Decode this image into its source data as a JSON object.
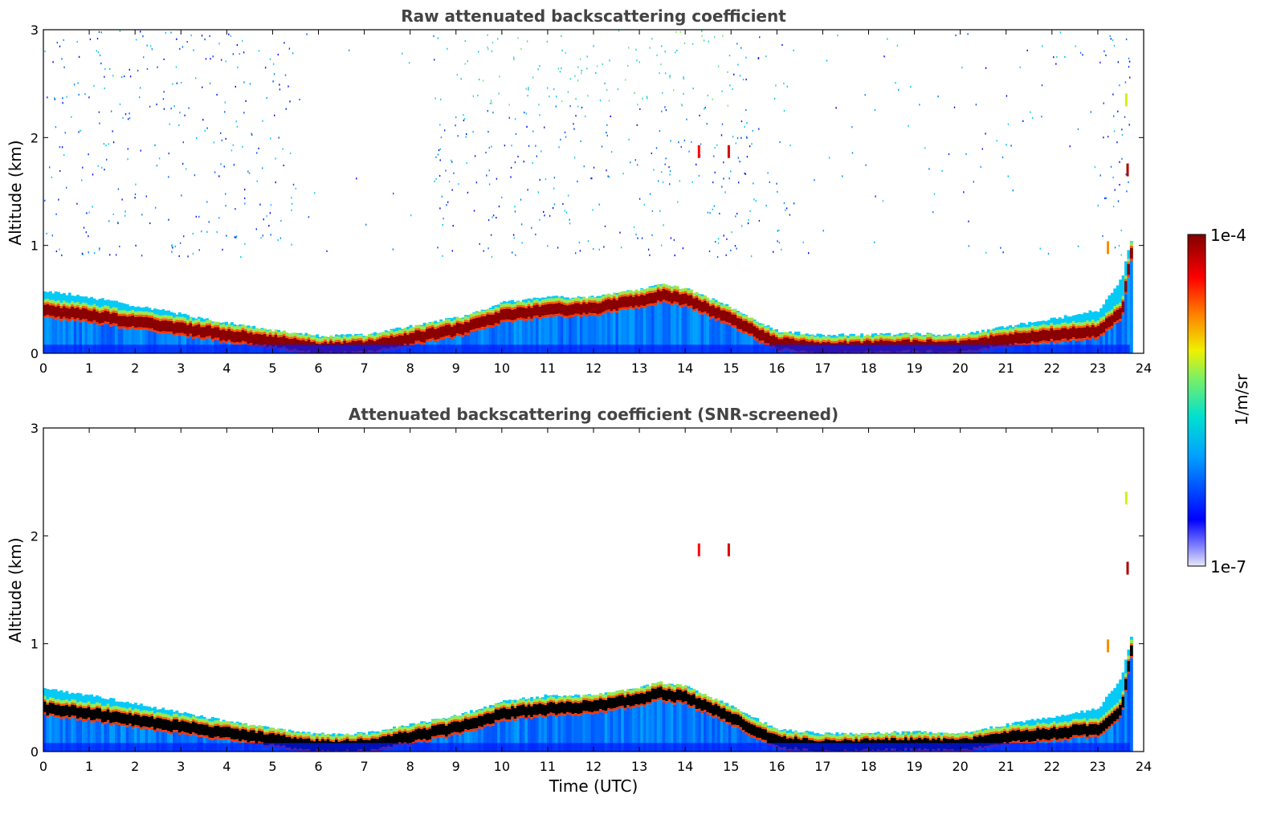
{
  "chart_data": [
    {
      "type": "heatmap",
      "title": "Raw attenuated backscattering coefficient",
      "xlabel": "",
      "ylabel": "Altitude (km)",
      "xlim": [
        0,
        24
      ],
      "ylim": [
        0,
        3
      ],
      "xticks": [
        "0",
        "1",
        "2",
        "3",
        "4",
        "5",
        "6",
        "7",
        "8",
        "9",
        "10",
        "11",
        "12",
        "13",
        "14",
        "15",
        "16",
        "17",
        "18",
        "19",
        "20",
        "21",
        "22",
        "23",
        "24"
      ],
      "yticks": [
        "0",
        "1",
        "2",
        "3"
      ],
      "screened": false,
      "layer_top_km": {
        "time": [
          0,
          1,
          2,
          3,
          4,
          5,
          6,
          7,
          8,
          9,
          10,
          11,
          12,
          13,
          13.4,
          14,
          15,
          16,
          17,
          18,
          19,
          20,
          21,
          22,
          23,
          23.5,
          23.7
        ],
        "alt": [
          0.58,
          0.52,
          0.44,
          0.36,
          0.28,
          0.21,
          0.16,
          0.17,
          0.25,
          0.33,
          0.47,
          0.52,
          0.52,
          0.59,
          0.64,
          0.6,
          0.42,
          0.2,
          0.17,
          0.17,
          0.18,
          0.17,
          0.25,
          0.32,
          0.4,
          0.7,
          1.05
        ]
      },
      "dark_layer_km": {
        "time": [
          0,
          1,
          2,
          3,
          4,
          5,
          6,
          7,
          8,
          9,
          10,
          11,
          12,
          13,
          13.4,
          14,
          15,
          16,
          17,
          18,
          19,
          20,
          21,
          22,
          23,
          23.5,
          23.7
        ],
        "alt": [
          0.41,
          0.36,
          0.3,
          0.24,
          0.18,
          0.12,
          0.06,
          0.07,
          0.15,
          0.23,
          0.36,
          0.41,
          0.43,
          0.5,
          0.55,
          0.51,
          0.32,
          0.1,
          0.06,
          0.07,
          0.08,
          0.07,
          0.14,
          0.18,
          0.22,
          0.4,
          0.95
        ]
      },
      "spots": [
        {
          "time": 14.3,
          "alt": 1.87,
          "level": 0.85
        },
        {
          "time": 14.95,
          "alt": 1.87,
          "level": 0.9
        },
        {
          "time": 23.65,
          "alt": 1.7,
          "level": 0.95
        },
        {
          "time": 23.62,
          "alt": 2.35,
          "level": 0.55
        },
        {
          "time": 23.22,
          "alt": 0.98,
          "level": 0.7
        }
      ]
    },
    {
      "type": "heatmap",
      "title": "Attenuated backscattering coefficient (SNR-screened)",
      "xlabel": "Time (UTC)",
      "ylabel": "Altitude (km)",
      "xlim": [
        0,
        24
      ],
      "ylim": [
        0,
        3
      ],
      "xticks": [
        "0",
        "1",
        "2",
        "3",
        "4",
        "5",
        "6",
        "7",
        "8",
        "9",
        "10",
        "11",
        "12",
        "13",
        "14",
        "15",
        "16",
        "17",
        "18",
        "19",
        "20",
        "21",
        "22",
        "23",
        "24"
      ],
      "yticks": [
        "0",
        "1",
        "2",
        "3"
      ],
      "screened": true
    }
  ],
  "colorbar": {
    "max_label": "1e-4",
    "min_label": "1e-7",
    "units": "1/m/sr",
    "colormap": [
      "#e8e8f8",
      "#0000ff",
      "#00c8ff",
      "#40e0a0",
      "#f0f000",
      "#ff8000",
      "#ff0000",
      "#800000"
    ]
  }
}
